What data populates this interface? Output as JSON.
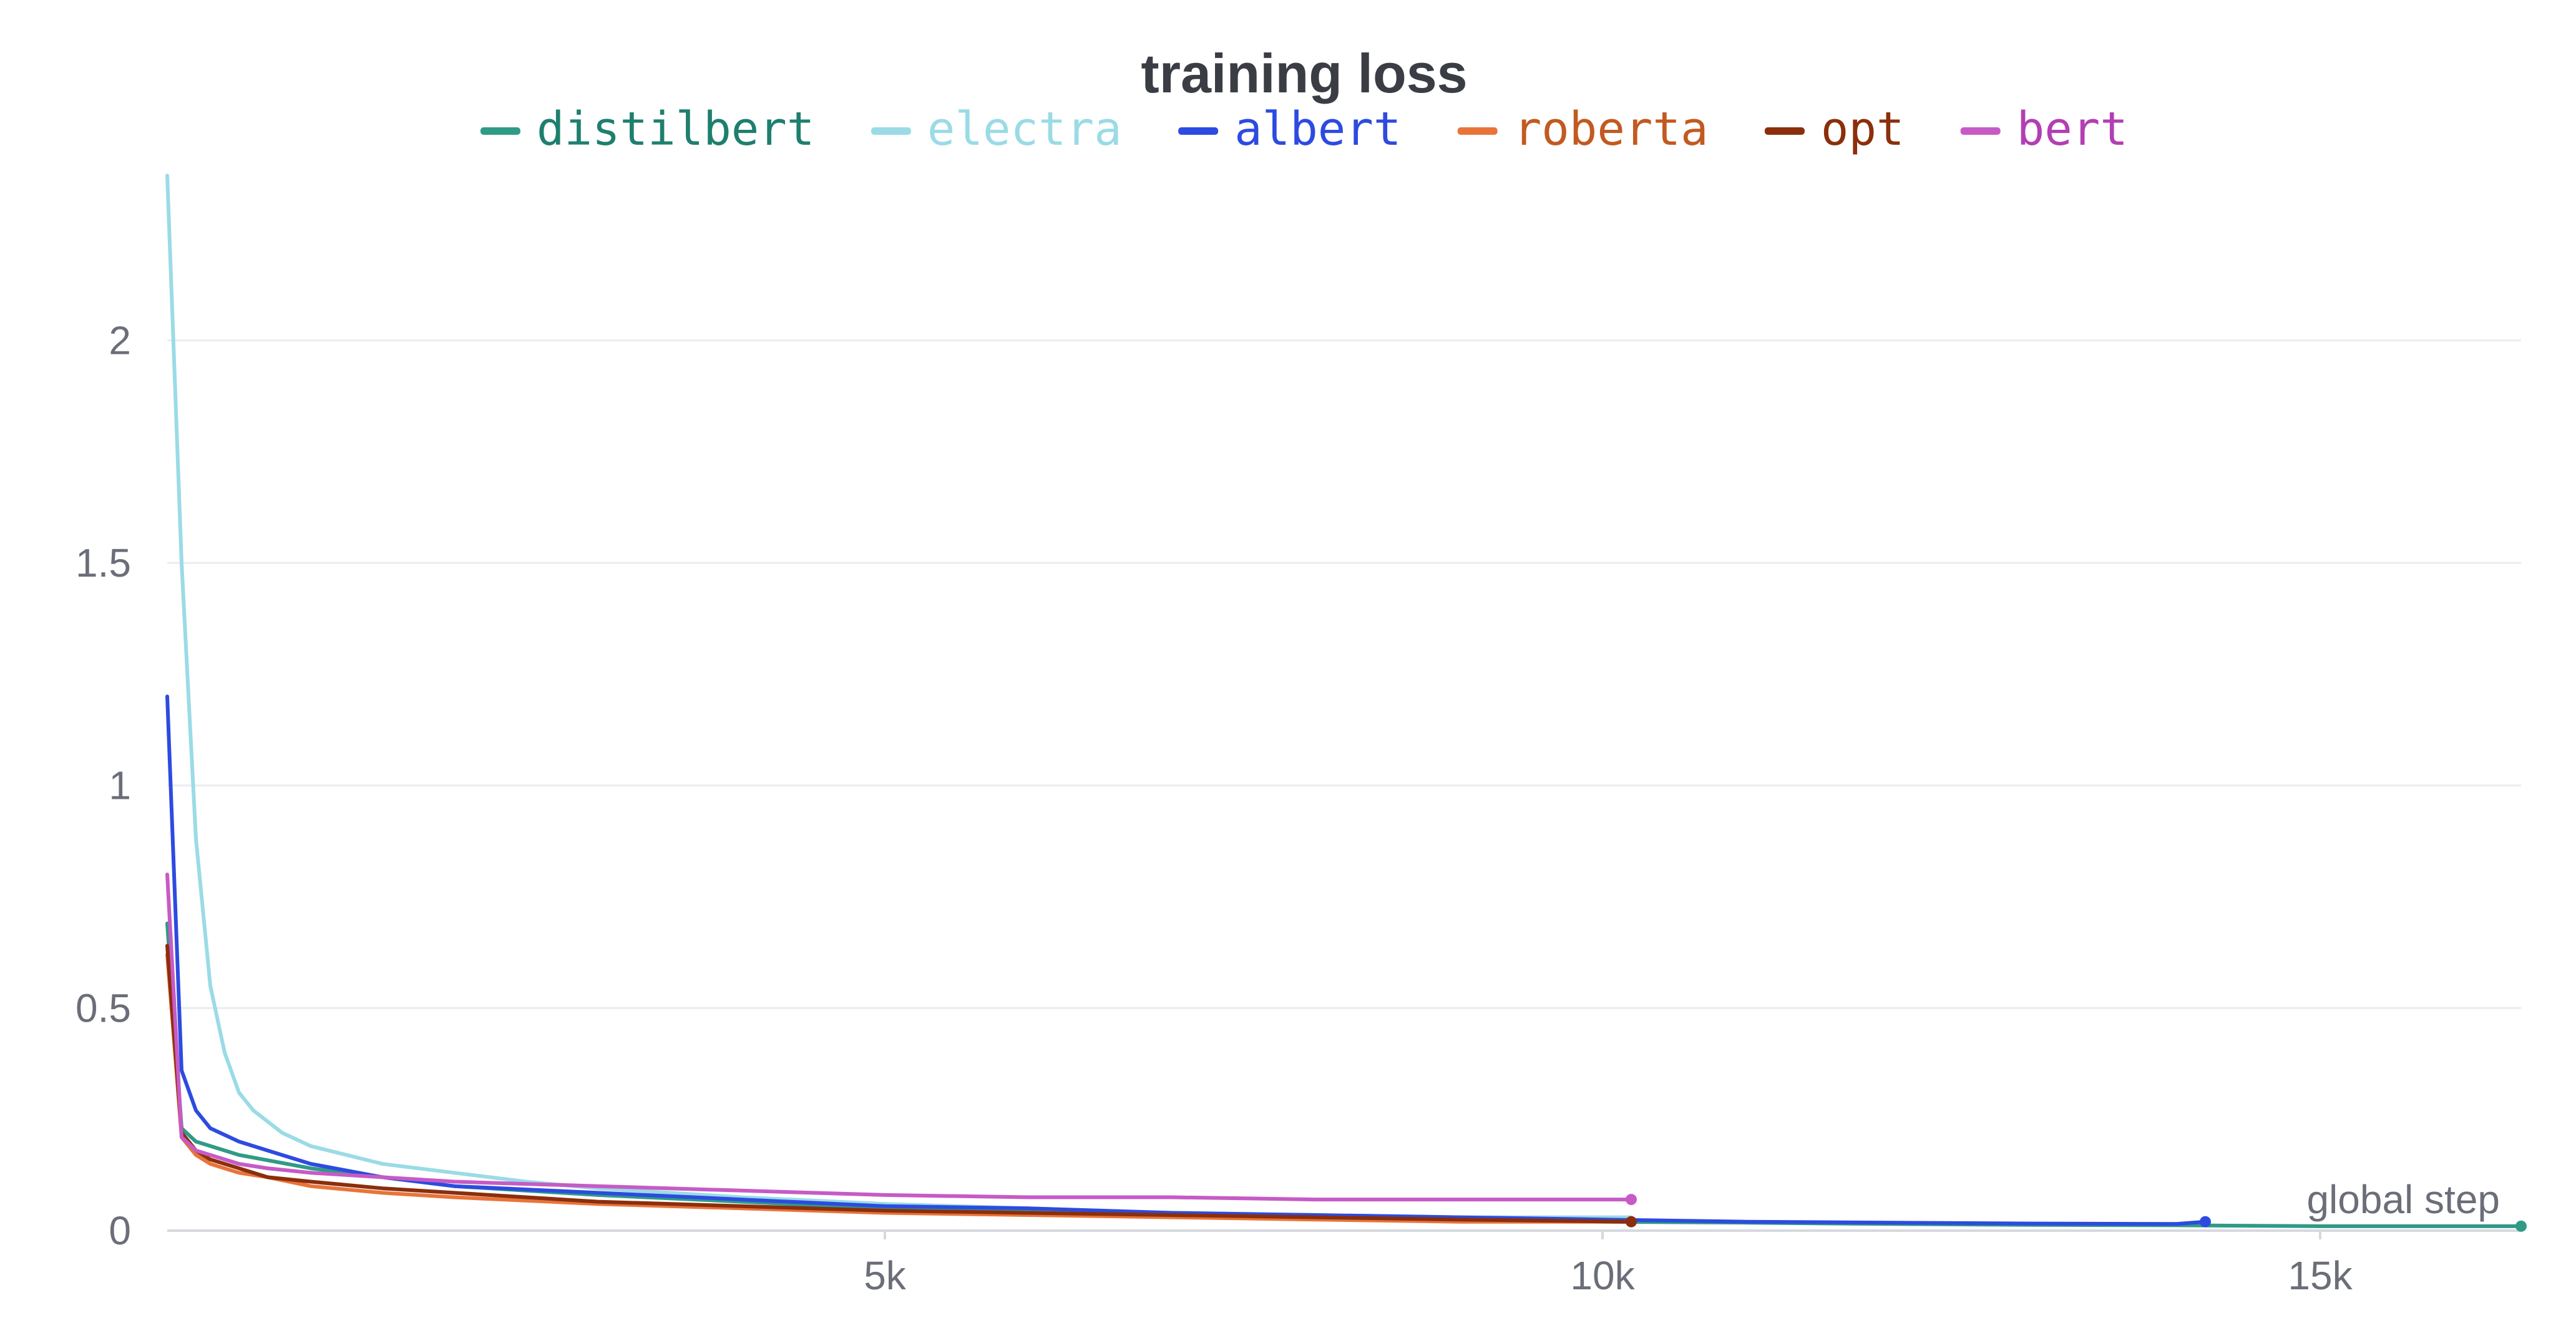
{
  "chart_data": {
    "type": "line",
    "title": "training loss",
    "xlabel": "global step",
    "ylabel": "",
    "xlim": [
      0,
      16400
    ],
    "ylim": [
      0,
      2.4
    ],
    "x_ticks": [
      {
        "value": 5000,
        "label": "5k"
      },
      {
        "value": 10000,
        "label": "10k"
      },
      {
        "value": 15000,
        "label": "15k"
      }
    ],
    "y_ticks": [
      {
        "value": 0,
        "label": "0"
      },
      {
        "value": 0.5,
        "label": "0.5"
      },
      {
        "value": 1,
        "label": "1"
      },
      {
        "value": 1.5,
        "label": "1.5"
      },
      {
        "value": 2,
        "label": "2"
      }
    ],
    "grid": "horizontal",
    "legend_position": "top-center",
    "series": [
      {
        "name": "distilbert",
        "color": "#2f9b86",
        "label_color": "#1e7f6e",
        "end_marker": true,
        "x": [
          0,
          100,
          200,
          500,
          1000,
          1500,
          2000,
          3000,
          4000,
          5000,
          6000,
          7000,
          8000,
          9000,
          10000,
          11000,
          12000,
          13000,
          14000,
          15000,
          16400
        ],
        "y": [
          0.69,
          0.23,
          0.2,
          0.17,
          0.14,
          0.12,
          0.1,
          0.08,
          0.065,
          0.05,
          0.045,
          0.035,
          0.03,
          0.025,
          0.02,
          0.018,
          0.015,
          0.013,
          0.012,
          0.01,
          0.01
        ]
      },
      {
        "name": "electra",
        "color": "#9adbe6",
        "label_color": "#9adbe6",
        "end_marker": false,
        "x": [
          0,
          100,
          200,
          300,
          400,
          500,
          600,
          800,
          1000,
          1500,
          2000,
          2500,
          3000,
          4000,
          5000,
          6000,
          7000,
          8000,
          9000,
          10200
        ],
        "y": [
          2.37,
          1.5,
          0.88,
          0.55,
          0.4,
          0.31,
          0.27,
          0.22,
          0.19,
          0.15,
          0.13,
          0.11,
          0.095,
          0.075,
          0.06,
          0.05,
          0.04,
          0.035,
          0.03,
          0.03
        ]
      },
      {
        "name": "albert",
        "color": "#2d4be0",
        "label_color": "#2d4be0",
        "end_marker": true,
        "x": [
          0,
          100,
          200,
          300,
          500,
          700,
          1000,
          1500,
          2000,
          3000,
          4000,
          5000,
          6000,
          7000,
          8000,
          9000,
          10000,
          11000,
          12000,
          13000,
          14000,
          14200
        ],
        "y": [
          1.2,
          0.36,
          0.27,
          0.23,
          0.2,
          0.18,
          0.15,
          0.12,
          0.1,
          0.085,
          0.07,
          0.055,
          0.05,
          0.04,
          0.035,
          0.03,
          0.025,
          0.02,
          0.018,
          0.016,
          0.015,
          0.02
        ]
      },
      {
        "name": "roberta",
        "color": "#e8743a",
        "label_color": "#c25a20",
        "end_marker": false,
        "x": [
          0,
          100,
          200,
          300,
          500,
          700,
          1000,
          1500,
          2000,
          3000,
          4000,
          5000,
          6000,
          7000,
          8000,
          9000,
          10200
        ],
        "y": [
          0.62,
          0.21,
          0.17,
          0.15,
          0.13,
          0.12,
          0.1,
          0.085,
          0.075,
          0.06,
          0.05,
          0.04,
          0.035,
          0.03,
          0.025,
          0.02,
          0.02
        ]
      },
      {
        "name": "opt",
        "color": "#8b2e0c",
        "label_color": "#8b2e0c",
        "end_marker": true,
        "x": [
          0,
          100,
          200,
          300,
          500,
          700,
          1000,
          1500,
          2000,
          3000,
          4000,
          5000,
          6000,
          7000,
          8000,
          9000,
          10200
        ],
        "y": [
          0.64,
          0.22,
          0.18,
          0.16,
          0.14,
          0.12,
          0.11,
          0.095,
          0.085,
          0.065,
          0.055,
          0.045,
          0.04,
          0.035,
          0.03,
          0.025,
          0.02
        ]
      },
      {
        "name": "bert",
        "color": "#c65bc6",
        "label_color": "#b23fb3",
        "end_marker": true,
        "x": [
          0,
          100,
          200,
          300,
          500,
          700,
          1000,
          1500,
          2000,
          3000,
          4000,
          5000,
          6000,
          7000,
          8000,
          9000,
          10200
        ],
        "y": [
          0.8,
          0.21,
          0.18,
          0.17,
          0.15,
          0.14,
          0.13,
          0.12,
          0.11,
          0.1,
          0.09,
          0.08,
          0.075,
          0.075,
          0.07,
          0.07,
          0.07
        ]
      }
    ]
  }
}
